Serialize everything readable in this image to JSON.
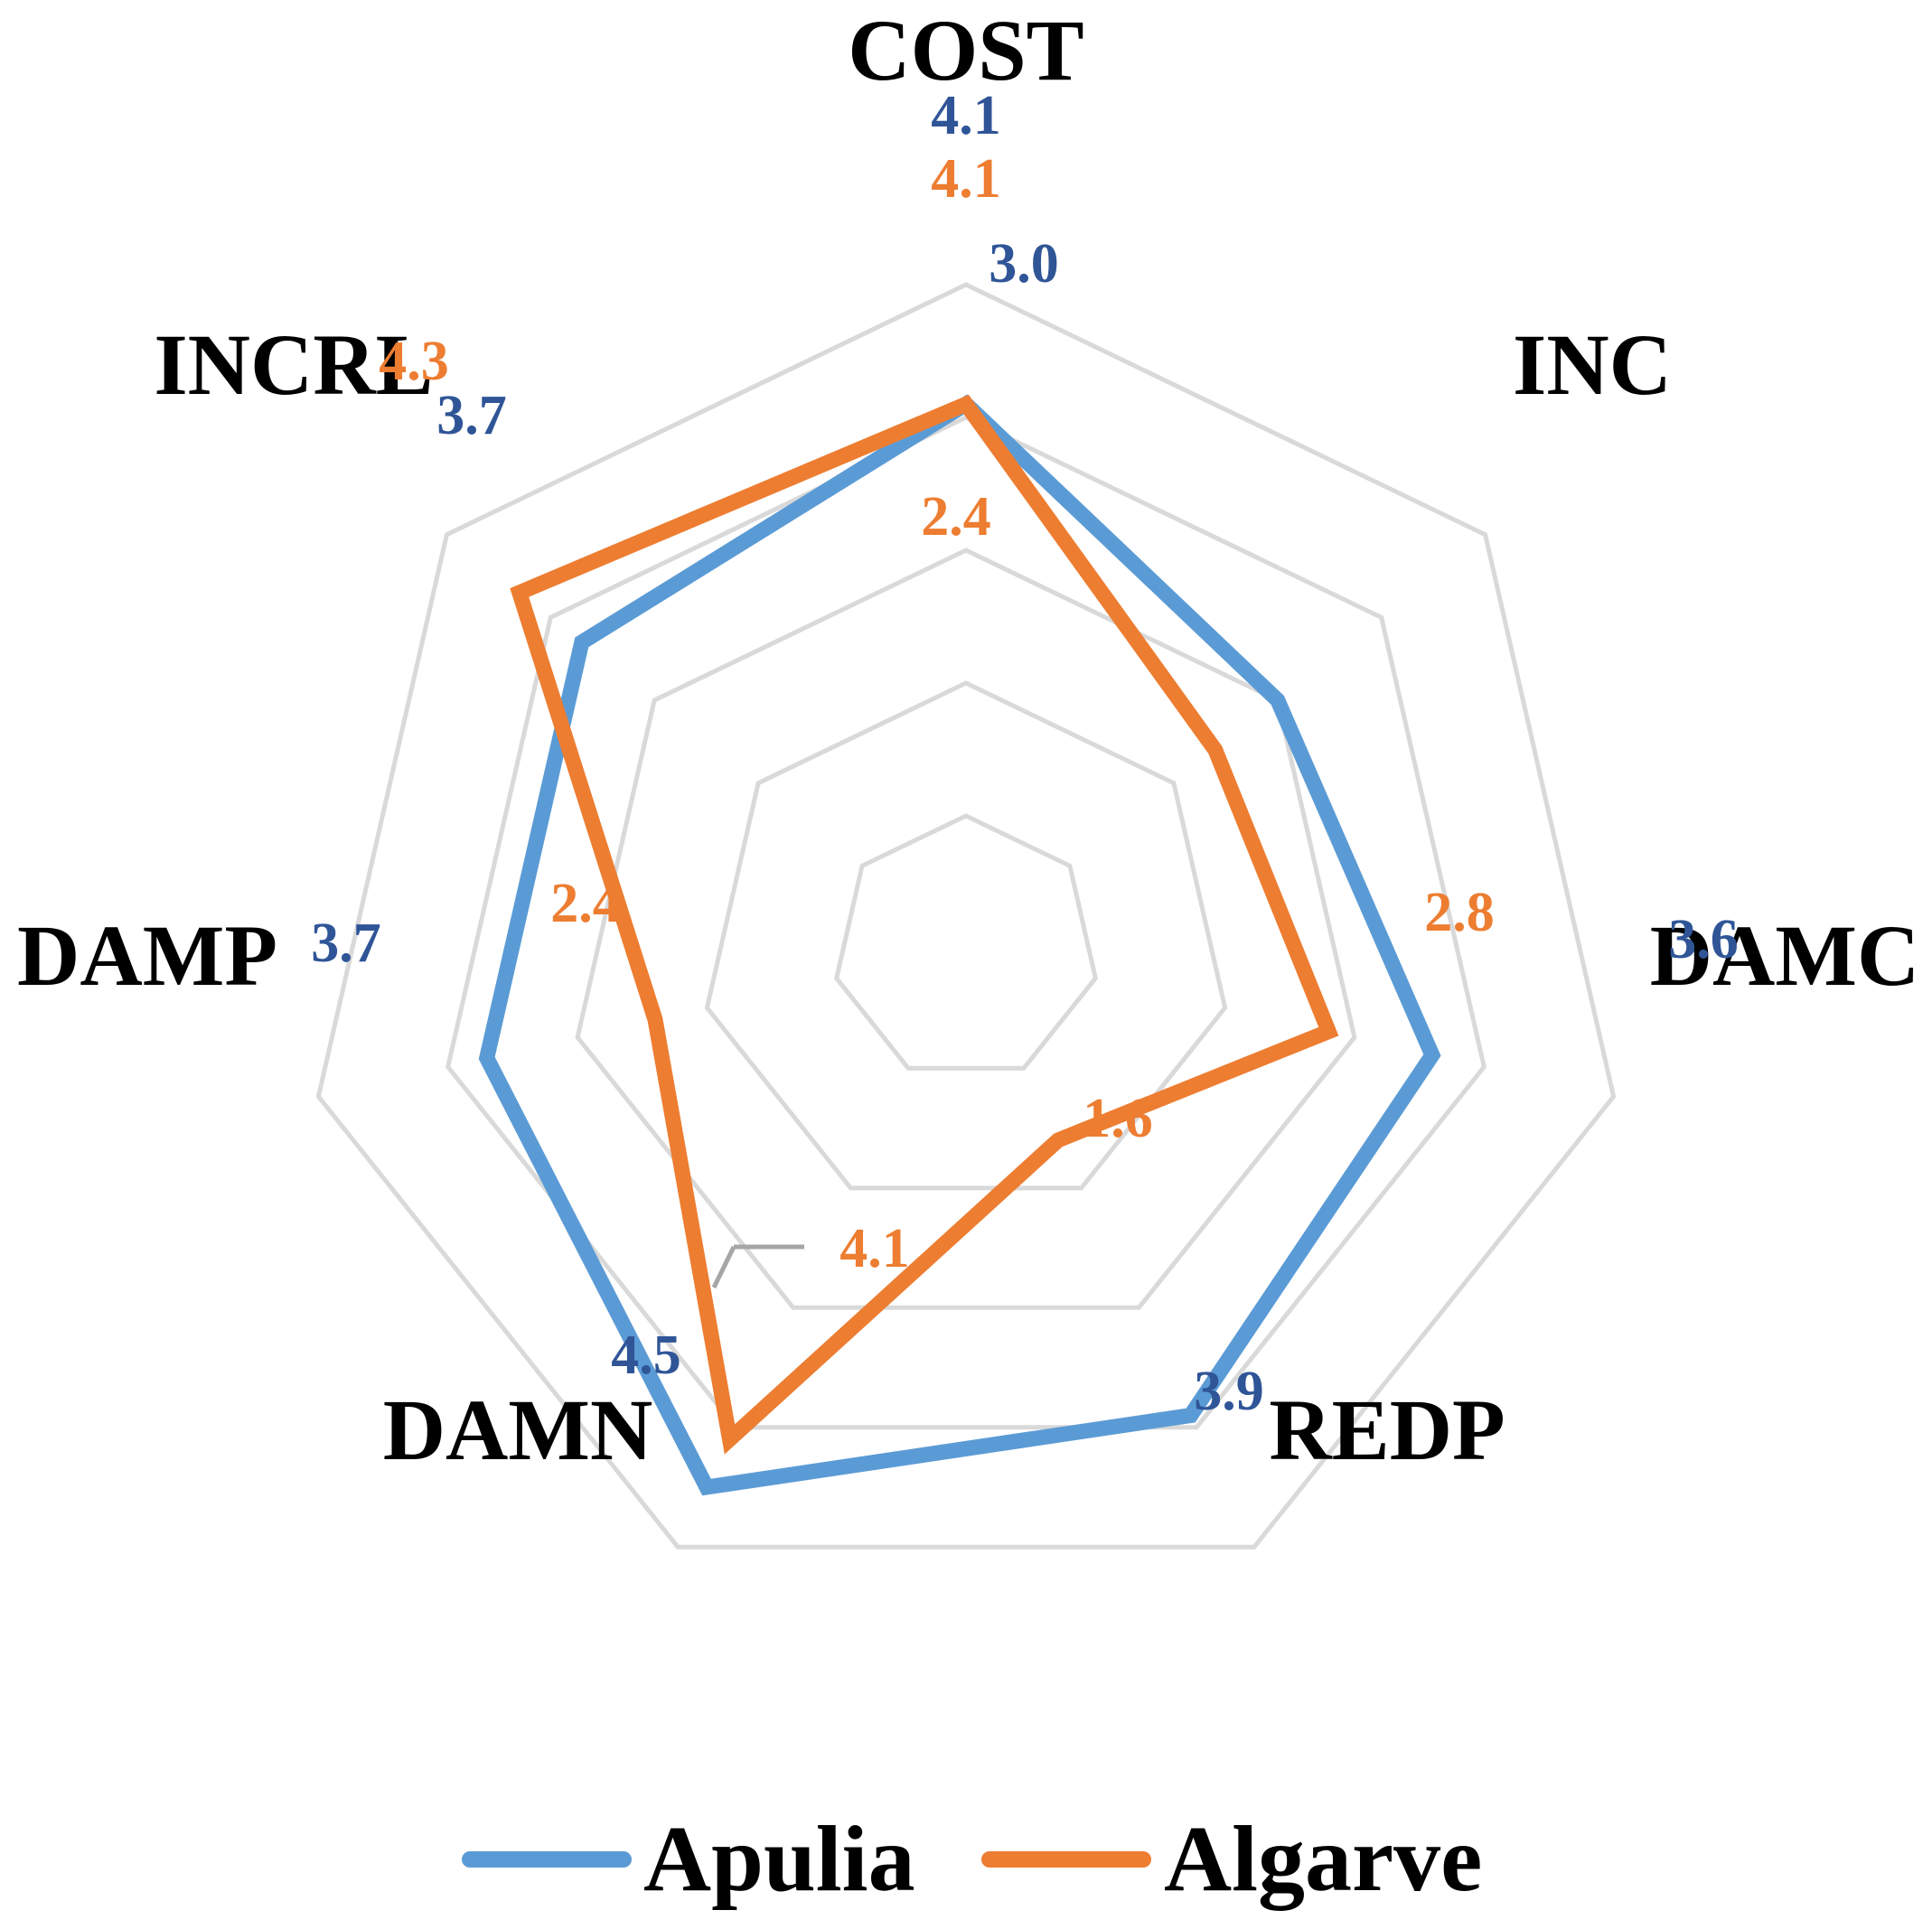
{
  "chart_data": {
    "type": "radar",
    "categories": [
      "COST",
      "INC",
      "DAMC",
      "REDP",
      "DAMN",
      "DAMP",
      "INCRL"
    ],
    "rlim": [
      0,
      5
    ],
    "grid": true,
    "legend_position": "bottom",
    "series": [
      {
        "name": "Apulia",
        "values": [
          4.1,
          3.0,
          3.6,
          3.9,
          4.5,
          3.7,
          3.7
        ],
        "labels": [
          "4.1",
          "3.0",
          "3.6",
          "3.9",
          "4.5",
          "3.7",
          "3.7"
        ],
        "line_color": "#5B9BD5",
        "label_color": "#2F5597"
      },
      {
        "name": "Algarve",
        "values": [
          4.1,
          2.4,
          2.8,
          1.6,
          4.1,
          2.4,
          4.3
        ],
        "labels": [
          "4.1",
          "2.4",
          "2.8",
          "1.6",
          "4.1",
          "2.4",
          "4.3"
        ],
        "line_color": "#ED7D31",
        "label_color": "#ED7D31"
      }
    ],
    "gridline_color": "#D9D9D9"
  }
}
